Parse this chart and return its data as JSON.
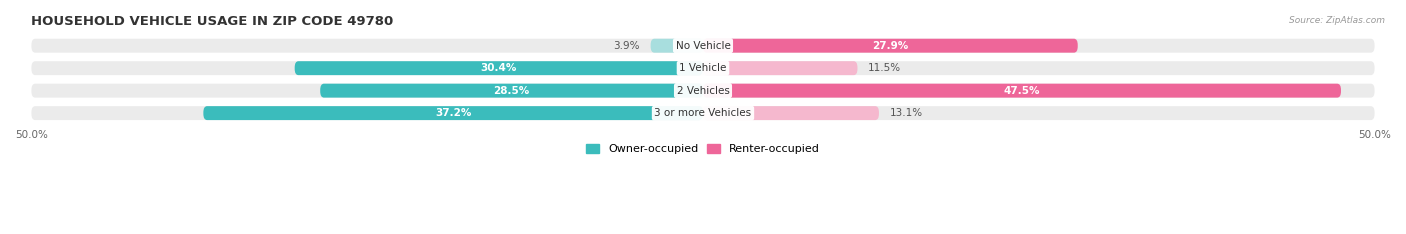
{
  "title": "HOUSEHOLD VEHICLE USAGE IN ZIP CODE 49780",
  "source": "Source: ZipAtlas.com",
  "categories": [
    "No Vehicle",
    "1 Vehicle",
    "2 Vehicles",
    "3 or more Vehicles"
  ],
  "owner_values": [
    3.9,
    30.4,
    28.5,
    37.2
  ],
  "renter_values": [
    27.9,
    11.5,
    47.5,
    13.1
  ],
  "owner_color_dark": "#3BBCBC",
  "owner_color_light": "#A8DEDE",
  "renter_color_dark": "#EE6699",
  "renter_color_light": "#F5B8CE",
  "bar_bg_color": "#EBEBEB",
  "axis_limit": 50.0,
  "bar_height": 0.62,
  "bar_gap": 1.0,
  "figsize": [
    14.06,
    2.34
  ],
  "dpi": 100,
  "title_fontsize": 9.5,
  "label_fontsize": 7.5,
  "tick_fontsize": 7.5,
  "category_fontsize": 7.5,
  "legend_fontsize": 8,
  "owner_dark_threshold": 10,
  "renter_dark_threshold": 20
}
